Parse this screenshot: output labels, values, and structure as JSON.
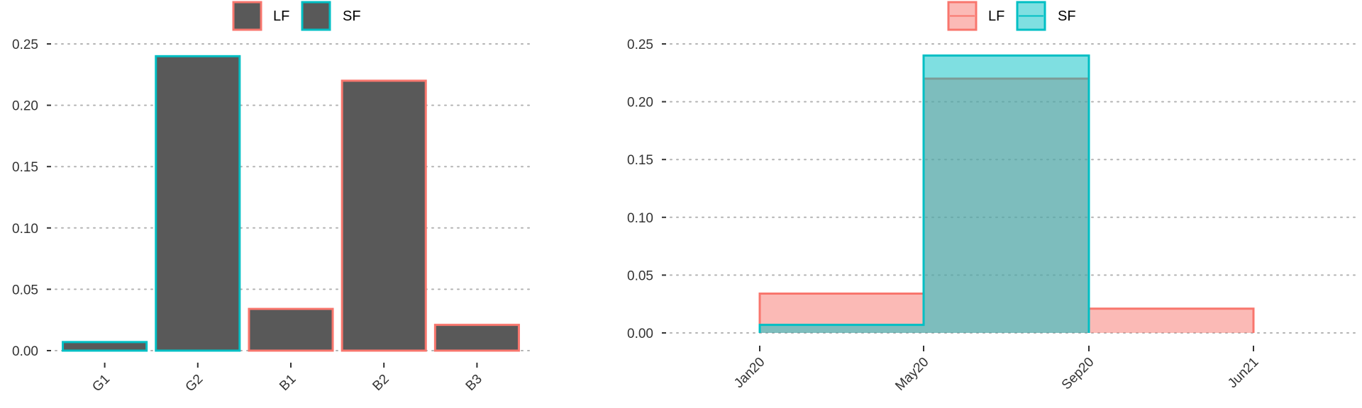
{
  "chart_data": [
    {
      "type": "bar",
      "categories": [
        "G1",
        "G2",
        "B1",
        "B2",
        "B3"
      ],
      "values": [
        0.007,
        0.24,
        0.034,
        0.22,
        0.021
      ],
      "groups": [
        "SF",
        "SF",
        "LF",
        "LF",
        "LF"
      ],
      "title": "",
      "xlabel": "",
      "ylabel": "",
      "ylim": [
        0,
        0.25
      ],
      "yticks": [
        "0.00",
        "0.05",
        "0.10",
        "0.15",
        "0.20",
        "0.25"
      ],
      "grid": "horizontal dotted",
      "legend": {
        "position": "top",
        "entries": [
          "LF",
          "SF"
        ]
      },
      "fill_color": "#595959",
      "colors": {
        "LF": "#F8766D",
        "SF": "#00BFC4"
      }
    },
    {
      "type": "area",
      "step": true,
      "x_ticks": [
        "Jan20",
        "May20",
        "Sep20",
        "Jun21"
      ],
      "series": [
        {
          "name": "LF",
          "segments": [
            {
              "from": "Jan20",
              "to": "May20",
              "value": 0.034
            },
            {
              "from": "May20",
              "to": "Sep20",
              "value": 0.22
            },
            {
              "from": "Sep20",
              "to": "Jun21",
              "value": 0.021
            }
          ]
        },
        {
          "name": "SF",
          "segments": [
            {
              "from": "Jan20",
              "to": "May20",
              "value": 0.007
            },
            {
              "from": "May20",
              "to": "Sep20",
              "value": 0.24
            }
          ]
        }
      ],
      "title": "",
      "xlabel": "",
      "ylabel": "",
      "ylim": [
        0,
        0.25
      ],
      "yticks": [
        "0.00",
        "0.05",
        "0.10",
        "0.15",
        "0.20",
        "0.25"
      ],
      "grid": "horizontal dotted",
      "legend": {
        "position": "top",
        "entries": [
          "LF",
          "SF"
        ]
      },
      "colors": {
        "LF": "#F8766D",
        "SF": "#00BFC4"
      }
    }
  ]
}
